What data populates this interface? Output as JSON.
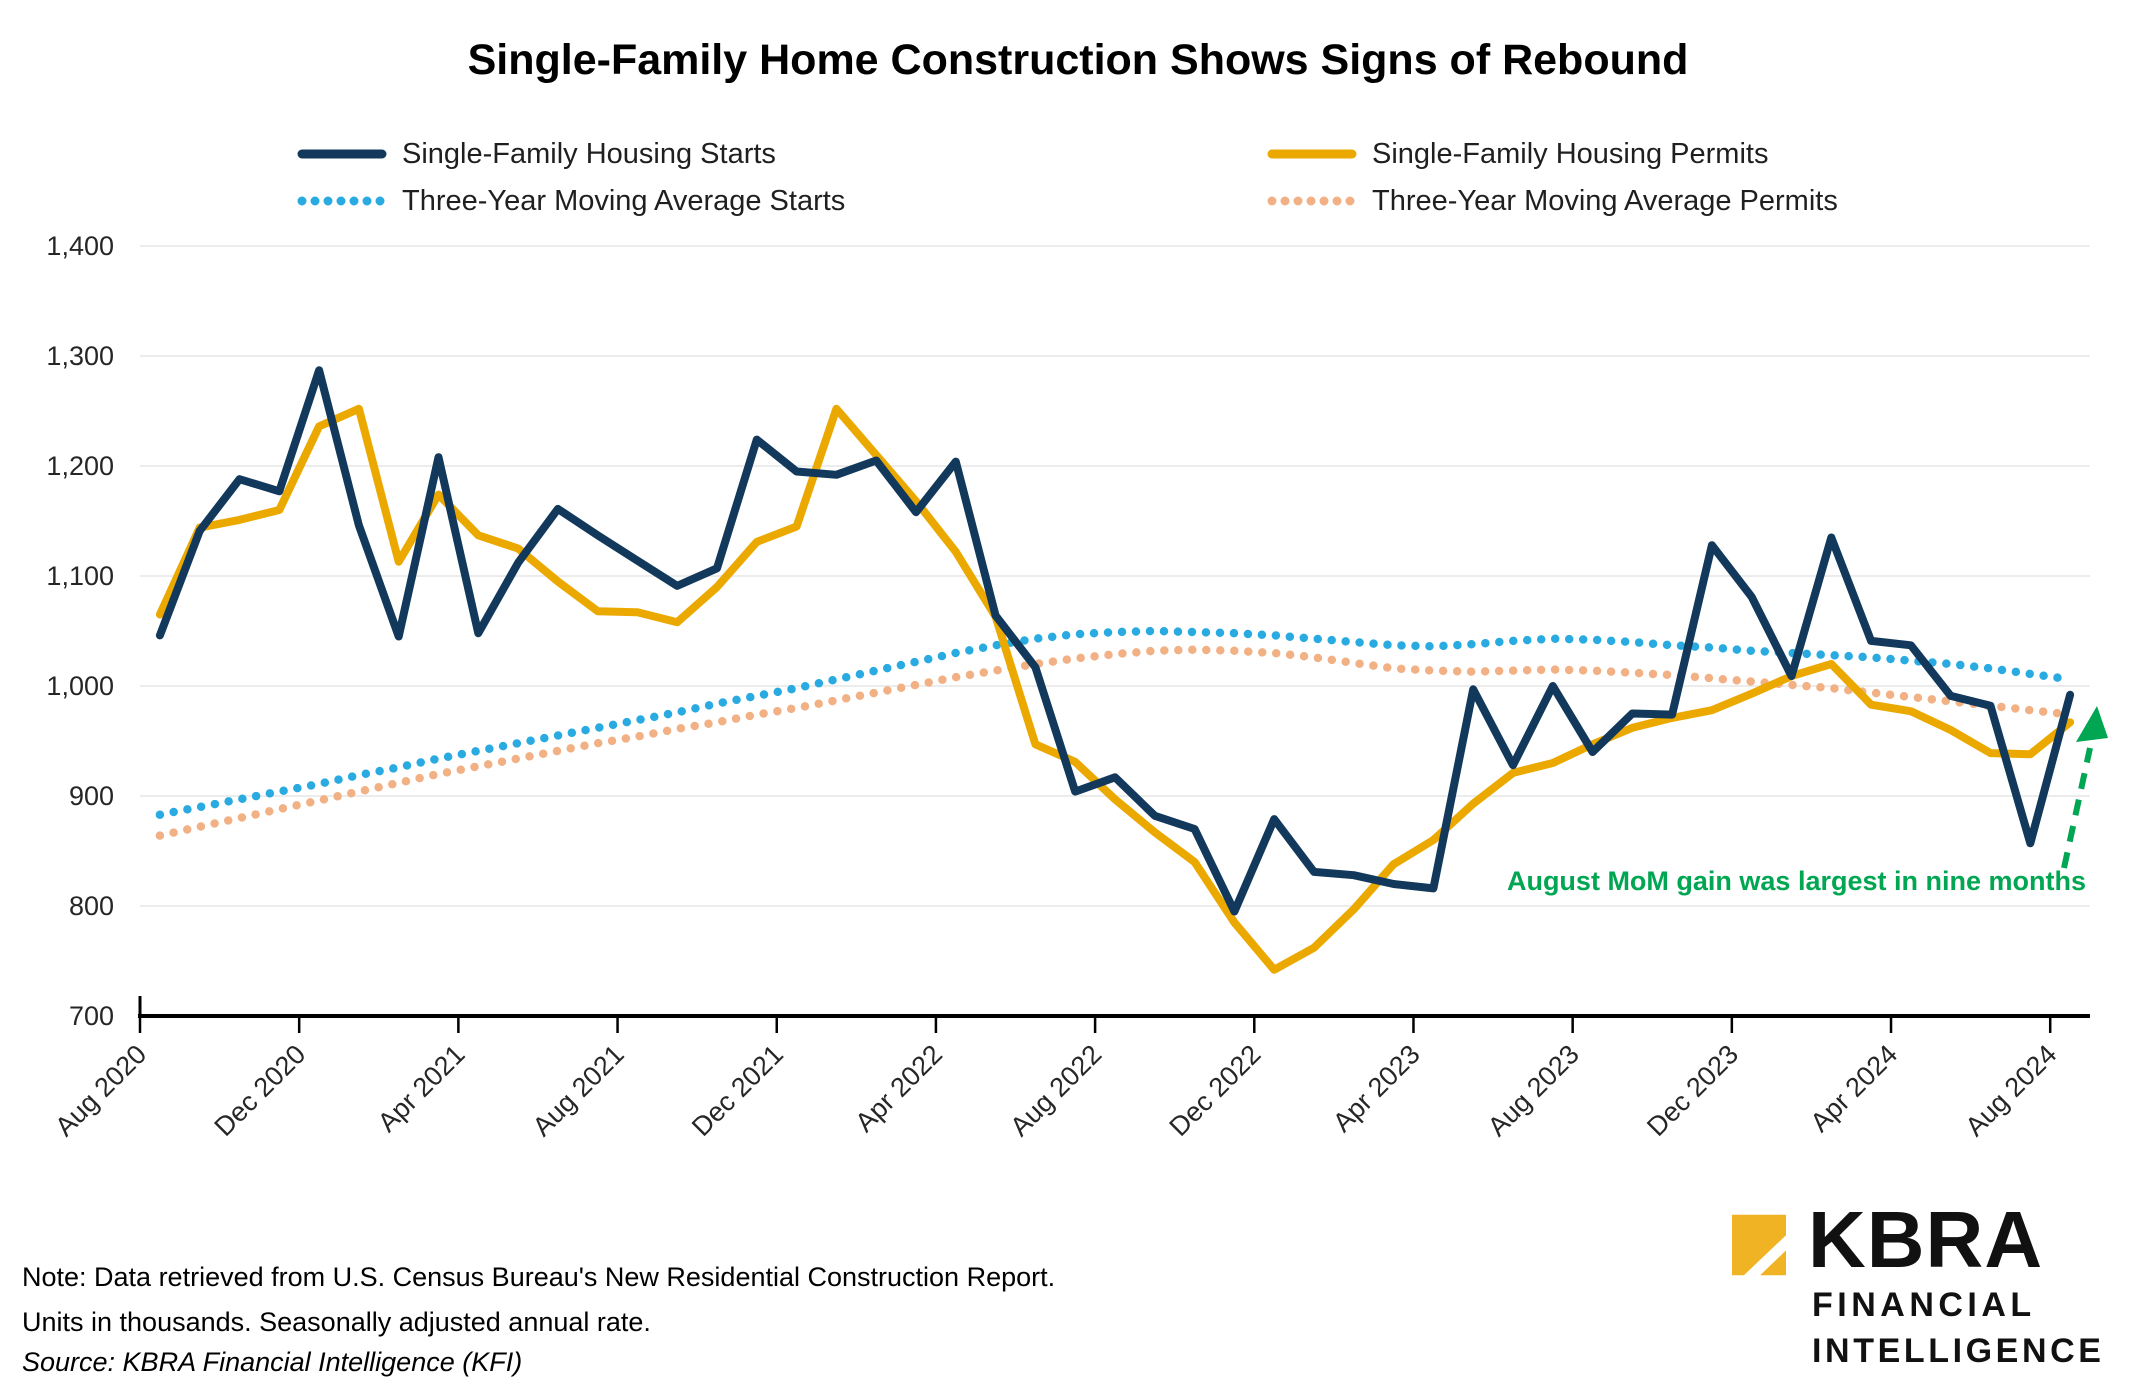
{
  "title": "Single-Family Home Construction Shows Signs of Rebound",
  "legend": {
    "items": [
      {
        "label": "Single-Family Housing Starts",
        "color": "#12395B",
        "style": "solid"
      },
      {
        "label": "Three-Year Moving Average Starts",
        "color": "#29ABE2",
        "style": "dotted"
      },
      {
        "label": "Single-Family Housing Permits",
        "color": "#EBA900",
        "style": "solid"
      },
      {
        "label": "Three-Year Moving Average Permits",
        "color": "#F2B185",
        "style": "dotted"
      }
    ]
  },
  "annotation": {
    "text": "August MoM gain was largest in nine months",
    "color": "#00A651",
    "arrow_color": "#00A651"
  },
  "notes": {
    "line1": "Note: Data retrieved from U.S. Census Bureau's New Residential Construction Report.",
    "line2": "Units in thousands. Seasonally adjusted annual rate.",
    "source": "Source: KBRA Financial Intelligence (KFI)"
  },
  "logo": {
    "name": "KBRA",
    "line1": "FINANCIAL",
    "line2": "INTELLIGENCE",
    "mark_color": "#F0B323"
  },
  "chart_data": {
    "type": "line",
    "title": "Single-Family Home Construction Shows Signs of Rebound",
    "xlabel": "",
    "ylabel": "",
    "units": "thousands, seasonally adjusted annual rate",
    "ylim": [
      700,
      1400
    ],
    "grid": "horizontal",
    "legend_position": "top",
    "x": [
      "Aug 2020",
      "Sep 2020",
      "Oct 2020",
      "Nov 2020",
      "Dec 2020",
      "Jan 2021",
      "Feb 2021",
      "Mar 2021",
      "Apr 2021",
      "May 2021",
      "Jun 2021",
      "Jul 2021",
      "Aug 2021",
      "Sep 2021",
      "Oct 2021",
      "Nov 2021",
      "Dec 2021",
      "Jan 2022",
      "Feb 2022",
      "Mar 2022",
      "Apr 2022",
      "May 2022",
      "Jun 2022",
      "Jul 2022",
      "Aug 2022",
      "Sep 2022",
      "Oct 2022",
      "Nov 2022",
      "Dec 2022",
      "Jan 2023",
      "Feb 2023",
      "Mar 2023",
      "Apr 2023",
      "May 2023",
      "Jun 2023",
      "Jul 2023",
      "Aug 2023",
      "Sep 2023",
      "Oct 2023",
      "Nov 2023",
      "Dec 2023",
      "Jan 2024",
      "Feb 2024",
      "Mar 2024",
      "Apr 2024",
      "May 2024",
      "Jun 2024",
      "Jul 2024",
      "Aug 2024"
    ],
    "x_axis": {
      "tick_labels": [
        "Aug 2020",
        "Dec 2020",
        "Apr 2021",
        "Aug 2021",
        "Dec 2021",
        "Apr 2022",
        "Aug 2022",
        "Dec 2022",
        "Apr 2023",
        "Aug 2023",
        "Dec 2023",
        "Apr 2024",
        "Aug 2024"
      ]
    },
    "y_axis": {
      "tick_labels": [
        "700",
        "800",
        "900",
        "1,000",
        "1,100",
        "1,200",
        "1,300",
        "1,400"
      ],
      "tick_values": [
        700,
        800,
        900,
        1000,
        1100,
        1200,
        1300,
        1400
      ]
    },
    "series": [
      {
        "name": "Single-Family Housing Starts",
        "color": "#12395B",
        "style": "solid",
        "width": 8,
        "values": [
          1046,
          1141,
          1188,
          1177,
          1287,
          1146,
          1045,
          1208,
          1048,
          1112,
          1161,
          1137,
          1114,
          1091,
          1107,
          1224,
          1195,
          1192,
          1205,
          1158,
          1204,
          1064,
          1017,
          904,
          917,
          882,
          870,
          795,
          879,
          831,
          828,
          820,
          816,
          997,
          928,
          1000,
          940,
          975,
          974,
          1128,
          1081,
          1009,
          1135,
          1041,
          1037,
          991,
          982,
          857,
          992
        ]
      },
      {
        "name": "Single-Family Housing Permits",
        "color": "#EBA900",
        "style": "solid",
        "width": 8,
        "values": [
          1065,
          1144,
          1151,
          1160,
          1236,
          1252,
          1113,
          1174,
          1137,
          1125,
          1095,
          1068,
          1067,
          1058,
          1090,
          1131,
          1145,
          1252,
          1210,
          1168,
          1122,
          1063,
          947,
          931,
          897,
          867,
          840,
          785,
          742,
          762,
          797,
          838,
          860,
          893,
          921,
          930,
          947,
          962,
          971,
          978,
          993,
          1009,
          1020,
          983,
          977,
          960,
          939,
          938,
          967
        ]
      },
      {
        "name": "Three-Year Moving Average Starts",
        "color": "#29ABE2",
        "style": "dotted",
        "width": 8.5,
        "values": [
          883,
          890,
          897,
          904,
          911,
          919,
          926,
          934,
          941,
          948,
          955,
          962,
          969,
          976,
          984,
          991,
          998,
          1006,
          1014,
          1022,
          1030,
          1037,
          1043,
          1047,
          1049,
          1050,
          1049,
          1048,
          1046,
          1043,
          1040,
          1037,
          1036,
          1038,
          1041,
          1043,
          1042,
          1040,
          1037,
          1035,
          1032,
          1030,
          1028,
          1026,
          1023,
          1020,
          1016,
          1011,
          1006
        ]
      },
      {
        "name": "Three-Year Moving Average Permits",
        "color": "#F2B185",
        "style": "dotted",
        "width": 8.5,
        "values": [
          864,
          872,
          880,
          888,
          896,
          904,
          912,
          920,
          927,
          934,
          941,
          948,
          954,
          961,
          967,
          974,
          980,
          987,
          994,
          1001,
          1008,
          1014,
          1020,
          1025,
          1029,
          1032,
          1033,
          1032,
          1030,
          1026,
          1021,
          1016,
          1014,
          1013,
          1014,
          1015,
          1014,
          1012,
          1010,
          1007,
          1004,
          1001,
          998,
          994,
          990,
          986,
          982,
          978,
          974
        ]
      }
    ],
    "annotations": [
      {
        "text": "August MoM gain was largest in nine months",
        "color": "#00A651",
        "arrow": "dashed green arrow pointing up to the Aug 2024 endpoint"
      }
    ]
  }
}
